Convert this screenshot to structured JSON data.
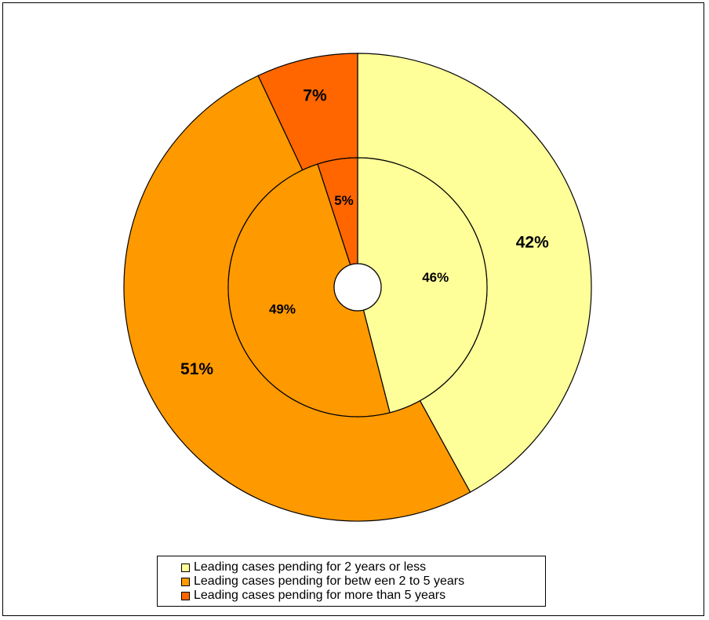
{
  "chart_data": {
    "type": "pie",
    "subtype": "doughnut",
    "title": "",
    "categories": [
      "Leading cases pending for 2 years or less",
      "Leading cases pending for betw een 2 to 5 years",
      "Leading cases pending for more than 5 years"
    ],
    "colors": [
      "#ffff99",
      "#ff9900",
      "#ff6600"
    ],
    "series": [
      {
        "ring": "outer",
        "values": [
          42,
          51,
          7
        ],
        "labels": [
          "42%",
          "51%",
          "7%"
        ]
      },
      {
        "ring": "inner",
        "values": [
          46,
          49,
          5
        ],
        "labels": [
          "46%",
          "49%",
          "5%"
        ]
      }
    ],
    "legend_position": "bottom"
  }
}
